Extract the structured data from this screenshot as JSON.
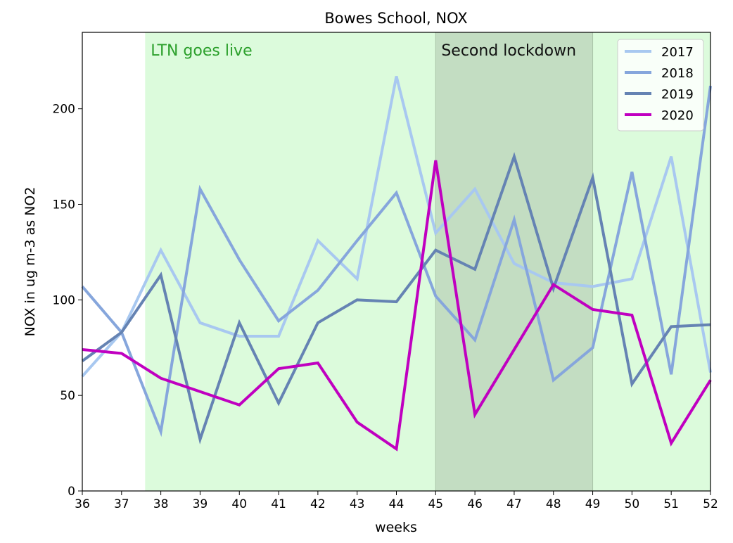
{
  "chart_data": {
    "type": "line",
    "title": "Bowes School, NOX",
    "xlabel": "weeks",
    "ylabel": "NOX in ug m-3 as NO2",
    "xlim": [
      36,
      52
    ],
    "ylim": [
      0,
      240
    ],
    "xticks": [
      36,
      37,
      38,
      39,
      40,
      41,
      42,
      43,
      44,
      45,
      46,
      47,
      48,
      49,
      50,
      51,
      52
    ],
    "yticks": [
      0,
      50,
      100,
      150,
      200
    ],
    "grid": false,
    "legend_position": "top-right",
    "x": [
      36,
      37,
      38,
      39,
      40,
      41,
      42,
      43,
      44,
      45,
      46,
      47,
      48,
      49,
      50,
      51,
      52
    ],
    "series": [
      {
        "name": "2017",
        "color": "#a8c8f0",
        "values": [
          60,
          83,
          126,
          88,
          81,
          81,
          131,
          111,
          217,
          135,
          158,
          119,
          109,
          107,
          111,
          175,
          62
        ]
      },
      {
        "name": "2018",
        "color": "#86a6dc",
        "values": [
          107,
          83,
          31,
          158,
          121,
          89,
          105,
          131,
          156,
          102,
          79,
          142,
          58,
          75,
          167,
          61,
          212
        ]
      },
      {
        "name": "2019",
        "color": "#6583b3",
        "values": [
          68,
          83,
          113,
          27,
          88,
          46,
          88,
          100,
          99,
          126,
          116,
          175,
          106,
          164,
          56,
          86,
          87
        ]
      },
      {
        "name": "2020",
        "color": "#c000c0",
        "values": [
          74,
          72,
          59,
          52,
          45,
          64,
          67,
          36,
          22,
          173,
          40,
          74,
          108,
          95,
          92,
          25,
          58
        ]
      }
    ],
    "spans": [
      {
        "label": "LTN goes live",
        "from": 37.6,
        "to": 52,
        "color": "#dcfbdc",
        "label_color": "#2ca02c"
      },
      {
        "label": "Second lockdown",
        "from": 45,
        "to": 49,
        "color": "#c3ddc2",
        "label_color": "#111111"
      }
    ]
  }
}
